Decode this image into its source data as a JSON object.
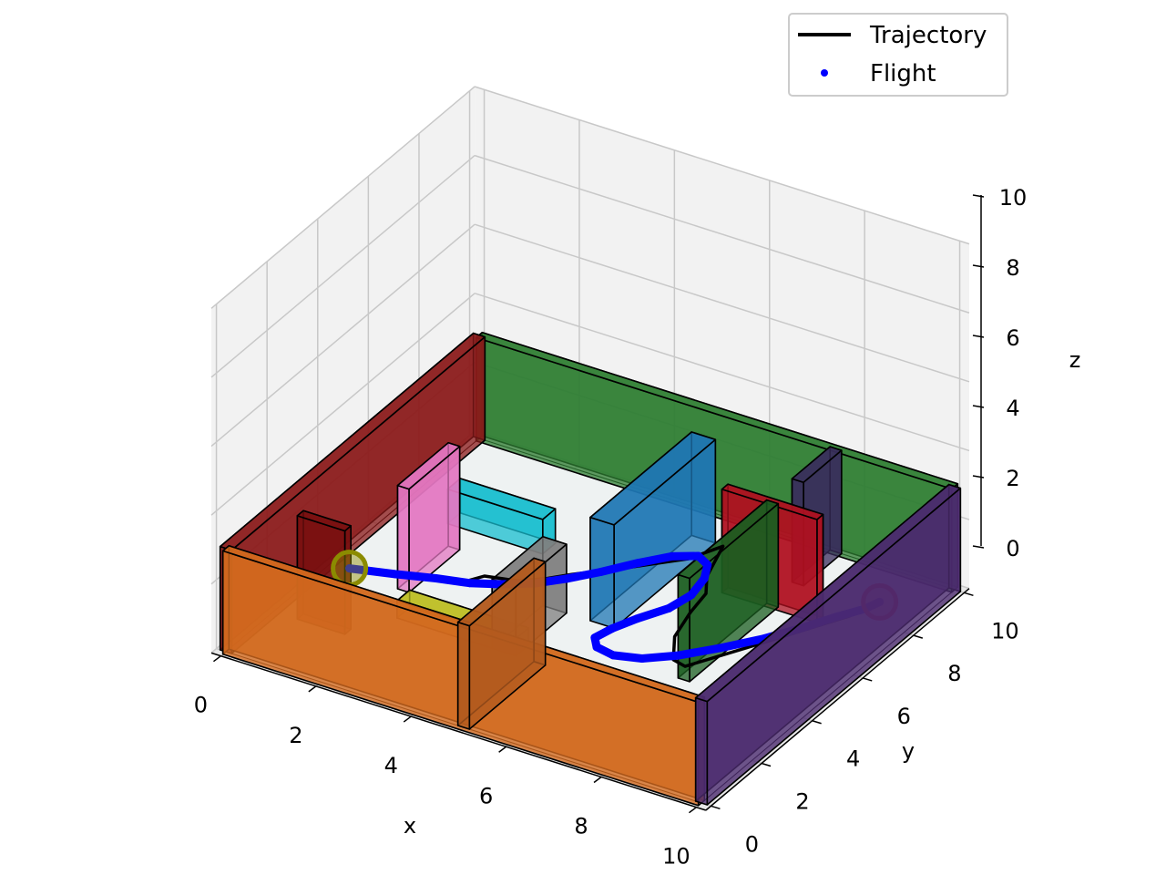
{
  "chart_data": {
    "type": "line",
    "title": "",
    "xlabel": "x",
    "ylabel": "y",
    "zlabel": "z",
    "xlim": [
      0,
      10
    ],
    "ylim": [
      0,
      10
    ],
    "zlim": [
      0,
      10
    ],
    "xticks": [
      "0",
      "2",
      "4",
      "6",
      "8",
      "10"
    ],
    "yticks": [
      "0",
      "2",
      "4",
      "6",
      "8",
      "10"
    ],
    "zticks": [
      "0",
      "2",
      "4",
      "6",
      "8",
      "10"
    ],
    "grid": true,
    "legend_position": "top-right",
    "legend": [
      {
        "label": "Trajectory",
        "marker": "line",
        "color": "#000000"
      },
      {
        "label": "Flight",
        "marker": "dot",
        "color": "#0000ff"
      }
    ],
    "walls": [
      {
        "name": "outer-wall-front",
        "x": [
          0,
          10
        ],
        "y": [
          0,
          0
        ],
        "z": [
          0,
          3
        ],
        "color": "#d2691e"
      },
      {
        "name": "outer-wall-right",
        "x": [
          10,
          10
        ],
        "y": [
          0,
          10
        ],
        "z": [
          0,
          3
        ],
        "color": "#4b2a6e"
      },
      {
        "name": "outer-wall-back",
        "x": [
          0,
          10
        ],
        "y": [
          10,
          10
        ],
        "z": [
          0,
          3
        ],
        "color": "#2e7d32"
      },
      {
        "name": "outer-wall-left",
        "x": [
          0,
          0
        ],
        "y": [
          0,
          10
        ],
        "z": [
          0,
          3
        ],
        "color": "#8b1a1a"
      },
      {
        "name": "inner-wall-front-partition",
        "x": [
          5,
          5
        ],
        "y": [
          0,
          3
        ],
        "z": [
          0,
          3
        ],
        "color": "#b35a1e"
      },
      {
        "name": "inner-wall-back-partition",
        "x": [
          7.5,
          7.5
        ],
        "y": [
          8.5,
          10
        ],
        "z": [
          0,
          3
        ],
        "color": "#3a2d5c"
      },
      {
        "name": "obstacle-red-back",
        "x": [
          6.5,
          8.5
        ],
        "y": [
          7.5,
          7.5
        ],
        "z": [
          0,
          3
        ],
        "color": "#b01020"
      },
      {
        "name": "obstacle-green",
        "x": [
          7.5,
          7.5
        ],
        "y": [
          4,
          7.5
        ],
        "z": [
          0,
          3
        ],
        "color": "#1b5e20"
      },
      {
        "name": "obstacle-blue-block",
        "x": [
          5,
          5.5
        ],
        "y": [
          5,
          9
        ],
        "z": [
          0,
          3
        ],
        "color": "#1f77b4"
      },
      {
        "name": "obstacle-cyan",
        "x": [
          2,
          4
        ],
        "y": [
          5,
          5.5
        ],
        "z": [
          1.5,
          2.5
        ],
        "color": "#17becf"
      },
      {
        "name": "obstacle-pink",
        "x": [
          1.6,
          1.6
        ],
        "y": [
          4,
          6
        ],
        "z": [
          0,
          3
        ],
        "color": "#e377c2"
      },
      {
        "name": "obstacle-yellow",
        "x": [
          2,
          4.5
        ],
        "y": [
          3,
          3.5
        ],
        "z": [
          0,
          0.5
        ],
        "color": "#bcbd22"
      },
      {
        "name": "obstacle-gray",
        "x": [
          4,
          4.5
        ],
        "y": [
          3,
          5
        ],
        "z": [
          0,
          2
        ],
        "color": "#7f7f7f"
      },
      {
        "name": "obstacle-darkred-left",
        "x": [
          0.5,
          1.5
        ],
        "y": [
          2,
          2
        ],
        "z": [
          0,
          3
        ],
        "color": "#7a1010"
      }
    ],
    "series": [
      {
        "name": "Trajectory",
        "style": "line",
        "color": "#000000",
        "x": [
          1.0,
          2.0,
          3.0,
          3.2,
          3.8,
          4.2,
          4.5,
          5.2,
          6.0,
          6.3,
          6.5,
          6.6,
          6.9,
          7.0,
          7.2,
          7.6,
          7.9,
          8.5,
          9.0,
          9.5,
          9.7
        ],
        "y": [
          3.0,
          3.3,
          3.8,
          4.2,
          4.4,
          4.8,
          5.2,
          6.0,
          7.0,
          7.8,
          7.0,
          6.6,
          6.0,
          5.2,
          4.2,
          3.4,
          3.3,
          4.6,
          5.7,
          6.8,
          7.6
        ],
        "z": [
          1.0,
          1.0,
          1.0,
          1.0,
          1.0,
          1.0,
          1.0,
          1.0,
          1.0,
          1.0,
          1.0,
          1.0,
          1.0,
          1.0,
          1.0,
          1.0,
          1.0,
          1.0,
          1.0,
          1.0,
          1.0
        ]
      },
      {
        "name": "Flight",
        "style": "dot",
        "color": "#0000ff",
        "x": [
          1.0,
          1.8,
          2.5,
          3.1,
          3.6,
          4.1,
          4.5,
          4.9,
          5.3,
          5.7,
          6.1,
          6.4,
          6.6,
          6.7,
          6.6,
          6.3,
          6.1,
          6.0,
          6.2,
          6.6,
          7.1,
          7.6,
          8.1,
          8.6,
          9.0,
          9.3,
          9.6,
          9.7
        ],
        "y": [
          3.0,
          3.3,
          3.6,
          3.8,
          4.1,
          4.5,
          5.0,
          5.6,
          6.3,
          6.9,
          7.2,
          7.0,
          6.5,
          5.8,
          5.1,
          4.4,
          3.8,
          3.3,
          3.0,
          2.9,
          3.1,
          3.6,
          4.3,
          5.1,
          5.9,
          6.6,
          7.2,
          7.6
        ],
        "z": [
          1.0,
          1.0,
          1.0,
          1.0,
          1.0,
          1.0,
          1.0,
          1.0,
          1.0,
          1.0,
          1.0,
          1.0,
          1.0,
          1.0,
          1.0,
          1.0,
          1.0,
          1.0,
          1.0,
          1.0,
          1.0,
          1.0,
          1.0,
          1.0,
          1.0,
          1.0,
          1.0,
          1.0
        ]
      }
    ],
    "markers": [
      {
        "name": "start",
        "x": 1.0,
        "y": 3.0,
        "z": 1.0,
        "color": "#8b8b00"
      },
      {
        "name": "goal",
        "x": 9.7,
        "y": 7.6,
        "z": 1.0,
        "color": "#ff0000"
      }
    ]
  }
}
